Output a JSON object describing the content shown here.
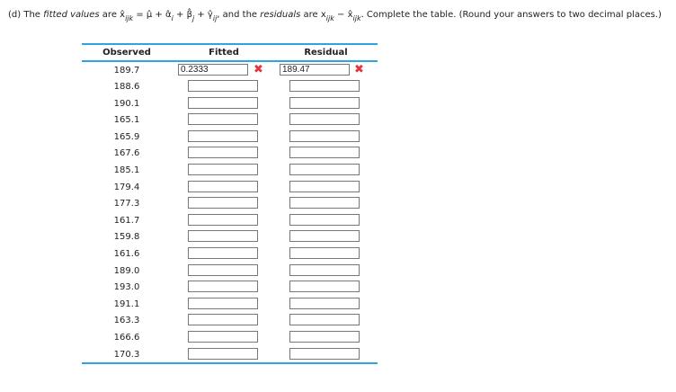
{
  "question": {
    "prefix": "(d) The ",
    "fitted_values": "fitted values",
    "are": " are x̂",
    "sub1": "ijk",
    "eq": " = μ̂ + α̂",
    "sub_i": "i",
    "plus_b": " + β̂",
    "sub_j": "j",
    "plus_g": " + γ̂",
    "sub_ij": "ij",
    "and": ", and the ",
    "residuals": "residuals",
    "are2": " are x",
    "sub2": "ijk",
    "minus": " − x̂",
    "sub3": "ijk",
    "suffix": ". Complete the table. (Round your answers to two decimal places.)"
  },
  "table": {
    "headers": [
      "Observed",
      "Fitted",
      "Residual"
    ],
    "rows": [
      {
        "observed": "189.7",
        "fitted": "0.2333",
        "residual": "189.47",
        "fitted_status": "incorrect",
        "residual_status": "incorrect"
      },
      {
        "observed": "188.6",
        "fitted": "",
        "residual": ""
      },
      {
        "observed": "190.1",
        "fitted": "",
        "residual": ""
      },
      {
        "observed": "165.1",
        "fitted": "",
        "residual": ""
      },
      {
        "observed": "165.9",
        "fitted": "",
        "residual": ""
      },
      {
        "observed": "167.6",
        "fitted": "",
        "residual": ""
      },
      {
        "observed": "185.1",
        "fitted": "",
        "residual": ""
      },
      {
        "observed": "179.4",
        "fitted": "",
        "residual": ""
      },
      {
        "observed": "177.3",
        "fitted": "",
        "residual": ""
      },
      {
        "observed": "161.7",
        "fitted": "",
        "residual": ""
      },
      {
        "observed": "159.8",
        "fitted": "",
        "residual": ""
      },
      {
        "observed": "161.6",
        "fitted": "",
        "residual": ""
      },
      {
        "observed": "189.0",
        "fitted": "",
        "residual": ""
      },
      {
        "observed": "193.0",
        "fitted": "",
        "residual": ""
      },
      {
        "observed": "191.1",
        "fitted": "",
        "residual": ""
      },
      {
        "observed": "163.3",
        "fitted": "",
        "residual": ""
      },
      {
        "observed": "166.6",
        "fitted": "",
        "residual": ""
      },
      {
        "observed": "170.3",
        "fitted": "",
        "residual": ""
      }
    ]
  },
  "icons": {
    "incorrect": "x-mark-icon"
  },
  "colors": {
    "accent": "#2aa7e0",
    "error": "#e8333a"
  }
}
